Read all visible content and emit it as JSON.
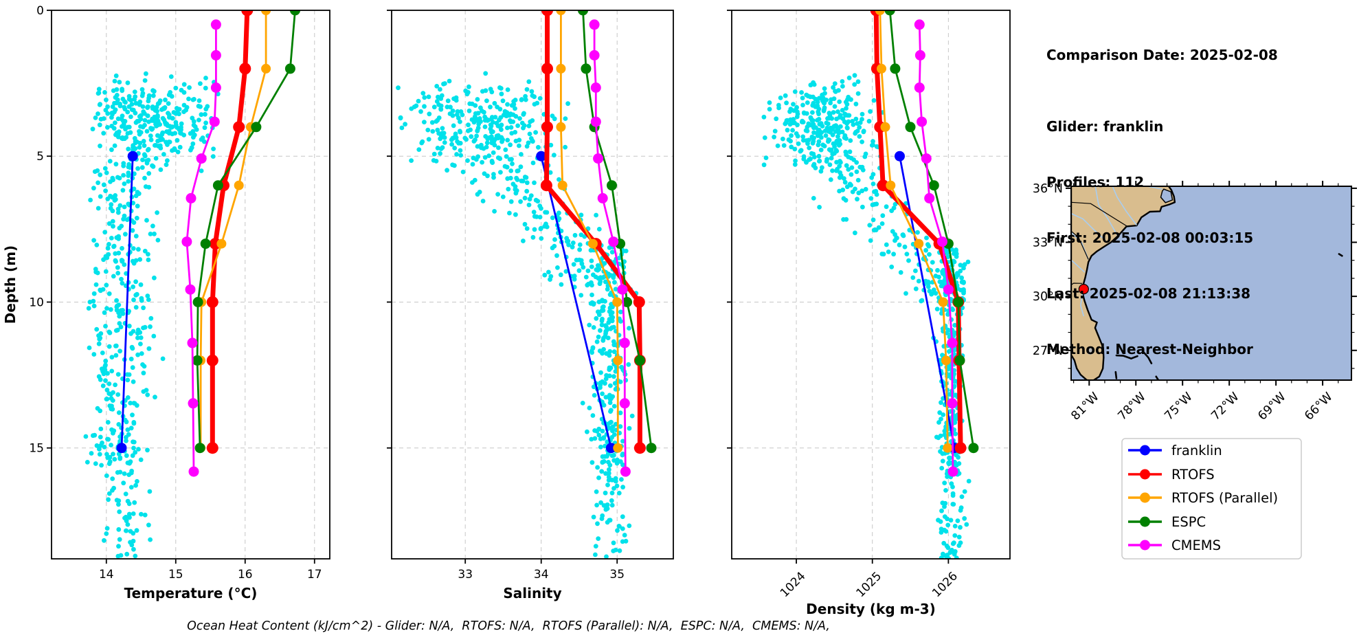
{
  "info_panel": {
    "comparison_date": "Comparison Date: 2025-02-08",
    "glider": "Glider: franklin",
    "profiles": "Profiles: 112",
    "first": "First: 2025-02-08 00:03:15",
    "last": "Last: 2025-02-08 21:13:38",
    "method": "Method: Nearest-Neighbor"
  },
  "footer": "Ocean Heat Content (kJ/cm^2) - Glider: N/A,  RTOFS: N/A,  RTOFS (Parallel): N/A,  ESPC: N/A,  CMEMS: N/A,",
  "legend": {
    "entries": [
      {
        "label": "franklin",
        "color": "#0000ff"
      },
      {
        "label": "RTOFS",
        "color": "#ff0000"
      },
      {
        "label": "RTOFS (Parallel)",
        "color": "#ffa500"
      },
      {
        "label": "ESPC",
        "color": "#008000"
      },
      {
        "label": "CMEMS",
        "color": "#ff00ff"
      }
    ]
  },
  "chart_data": {
    "type": "scatter+line-profiles",
    "ylabel": "Depth (m)",
    "ylim": [
      0,
      18.8
    ],
    "yticks": [
      0,
      5,
      10,
      15
    ],
    "grid": true,
    "panels": [
      {
        "key": "temperature",
        "xlabel": "Temperature (°C)",
        "xlim": [
          13.21,
          17.22
        ],
        "xticks": [
          14,
          15,
          16,
          17
        ],
        "tick_rotation": 0
      },
      {
        "key": "salinity",
        "xlabel": "Salinity",
        "xlim": [
          32.03,
          35.74
        ],
        "xticks": [
          33,
          34,
          35
        ],
        "tick_rotation": 0
      },
      {
        "key": "density",
        "xlabel": "Density (kg m-3)",
        "xlim": [
          1023.15,
          1026.81
        ],
        "xticks": [
          1024,
          1025,
          1026
        ],
        "tick_rotation": 45
      }
    ],
    "series": [
      {
        "name": "franklin",
        "color": "#0000ff",
        "linewidth": 2.8,
        "markersize": 7.5,
        "depths": [
          5,
          15
        ],
        "temperature": [
          14.38,
          14.22
        ],
        "salinity": [
          34.0,
          34.92
        ],
        "density": [
          1025.36,
          1026.08
        ]
      },
      {
        "name": "RTOFS",
        "color": "#ff0000",
        "linewidth": 7,
        "markersize": 8.5,
        "depths": [
          0,
          2,
          4,
          6,
          8,
          10,
          12,
          15
        ],
        "temperature": [
          16.03,
          16.0,
          15.91,
          15.69,
          15.57,
          15.53,
          15.53,
          15.53
        ],
        "salinity": [
          34.08,
          34.08,
          34.08,
          34.07,
          34.72,
          35.29,
          35.3,
          35.3
        ],
        "density": [
          1025.05,
          1025.06,
          1025.1,
          1025.14,
          1025.88,
          1026.13,
          1026.14,
          1026.16
        ]
      },
      {
        "name": "RTOFS (Parallel)",
        "color": "#ffa500",
        "linewidth": 2.8,
        "markersize": 7,
        "depths": [
          0,
          2,
          4,
          6,
          8,
          10,
          12,
          15
        ],
        "temperature": [
          16.3,
          16.3,
          16.08,
          15.91,
          15.66,
          15.37,
          15.36,
          15.36
        ],
        "salinity": [
          34.26,
          34.26,
          34.26,
          34.28,
          34.68,
          35.0,
          35.01,
          35.01
        ],
        "density": [
          1025.1,
          1025.12,
          1025.17,
          1025.24,
          1025.61,
          1025.93,
          1025.97,
          1025.99
        ]
      },
      {
        "name": "ESPC",
        "color": "#008000",
        "linewidth": 2.8,
        "markersize": 7.5,
        "depths": [
          0,
          2,
          4,
          6,
          8,
          10,
          12,
          15
        ],
        "temperature": [
          16.72,
          16.65,
          16.16,
          15.61,
          15.43,
          15.32,
          15.31,
          15.35
        ],
        "salinity": [
          34.55,
          34.59,
          34.7,
          34.93,
          35.04,
          35.13,
          35.3,
          35.45
        ],
        "density": [
          1025.23,
          1025.3,
          1025.5,
          1025.81,
          1026.0,
          1026.13,
          1026.15,
          1026.33
        ]
      },
      {
        "name": "CMEMS",
        "color": "#ff00ff",
        "linewidth": 2.8,
        "markersize": 7.5,
        "depths": [
          0.49,
          1.54,
          2.65,
          3.82,
          5.08,
          6.44,
          7.93,
          9.57,
          11.4,
          13.47,
          15.81
        ],
        "temperature": [
          15.58,
          15.58,
          15.58,
          15.56,
          15.37,
          15.22,
          15.16,
          15.21,
          15.24,
          15.25,
          15.26
        ],
        "salinity": [
          34.7,
          34.7,
          34.72,
          34.72,
          34.75,
          34.81,
          34.95,
          35.07,
          35.1,
          35.1,
          35.11
        ],
        "density": [
          1025.62,
          1025.63,
          1025.62,
          1025.65,
          1025.71,
          1025.75,
          1025.92,
          1026.0,
          1026.05,
          1026.05,
          1026.06
        ]
      }
    ],
    "glider_scatter": {
      "label": "glider raw observations",
      "color": "#00e1ea",
      "marker_radius": 3.4,
      "seed": 42,
      "clusters": {
        "temperature": [
          {
            "n": 300,
            "depth": {
              "dist": "gauss",
              "mean": 3.9,
              "sd": 0.8,
              "min": 2.15,
              "max": 5.6
            },
            "x": {
              "dist": "gauss",
              "mean": 14.6,
              "sd": 0.42,
              "min": 13.72,
              "max": 15.62
            }
          },
          {
            "n": 330,
            "depth": {
              "dist": "uniform",
              "min": 5.3,
              "max": 15.6
            },
            "x": {
              "dist": "gauss",
              "mean": 14.18,
              "sd": 0.23,
              "min": 13.7,
              "max": 14.82
            }
          },
          {
            "n": 55,
            "depth": {
              "dist": "uniform",
              "min": 15.6,
              "max": 18.75
            },
            "x": {
              "dist": "gauss",
              "mean": 14.25,
              "sd": 0.18,
              "min": 13.9,
              "max": 14.68
            }
          },
          {
            "n": 12,
            "depth": {
              "dist": "uniform",
              "min": 2.3,
              "max": 5.0
            },
            "x": {
              "dist": "uniform",
              "min": 15.05,
              "max": 15.6
            }
          }
        ],
        "salinity": [
          {
            "n": 280,
            "depth": {
              "dist": "gauss",
              "mean": 3.9,
              "sd": 0.8,
              "min": 2.15,
              "max": 5.6
            },
            "x": {
              "dist": "gauss",
              "mean": 33.15,
              "sd": 0.5,
              "min": 32.1,
              "max": 34.5
            }
          },
          {
            "n": 170,
            "depth": {
              "dist": "uniform",
              "min": 5.0,
              "max": 10.0
            },
            "x": {
              "dist": "trend",
              "base": 33.35,
              "ref": 5,
              "slope": 0.33,
              "noise": 0.3,
              "min": 32.5,
              "max": 35.25
            }
          },
          {
            "n": 260,
            "depth": {
              "dist": "uniform",
              "min": 8.0,
              "max": 15.6
            },
            "x": {
              "dist": "gauss",
              "mean": 34.88,
              "sd": 0.13,
              "min": 34.4,
              "max": 35.2
            }
          },
          {
            "n": 55,
            "depth": {
              "dist": "uniform",
              "min": 15.6,
              "max": 18.8
            },
            "x": {
              "dist": "gauss",
              "mean": 34.93,
              "sd": 0.1,
              "min": 34.6,
              "max": 35.18
            }
          }
        ],
        "density": [
          {
            "n": 280,
            "depth": {
              "dist": "gauss",
              "mean": 3.9,
              "sd": 0.8,
              "min": 2.15,
              "max": 5.6
            },
            "x": {
              "dist": "gauss",
              "mean": 1024.35,
              "sd": 0.33,
              "min": 1023.55,
              "max": 1025.2
            }
          },
          {
            "n": 160,
            "depth": {
              "dist": "uniform",
              "min": 5.0,
              "max": 10.0
            },
            "x": {
              "dist": "trend",
              "base": 1024.5,
              "ref": 5,
              "slope": 0.3,
              "noise": 0.27,
              "min": 1023.8,
              "max": 1026.2
            }
          },
          {
            "n": 280,
            "depth": {
              "dist": "uniform",
              "min": 8.0,
              "max": 16.0
            },
            "x": {
              "dist": "gauss",
              "mean": 1026.03,
              "sd": 0.08,
              "min": 1025.72,
              "max": 1026.3
            }
          },
          {
            "n": 55,
            "depth": {
              "dist": "uniform",
              "min": 16.0,
              "max": 18.8
            },
            "x": {
              "dist": "gauss",
              "mean": 1026.05,
              "sd": 0.08,
              "min": 1025.85,
              "max": 1026.3
            }
          }
        ]
      }
    }
  },
  "map": {
    "extent_lon": [
      -82.16,
      -64.15
    ],
    "extent_lat": [
      25.35,
      36.11
    ],
    "lon_tick_values": [
      -81,
      -78,
      -75,
      -72,
      -69,
      -66
    ],
    "lon_tick_labels": [
      "81°W",
      "78°W",
      "75°W",
      "72°W",
      "69°W",
      "66°W"
    ],
    "lat_tick_values": [
      36,
      33,
      30,
      27
    ],
    "lat_tick_labels": [
      "36°N",
      "33°N",
      "30°N",
      "27°N"
    ],
    "marker": {
      "lon": -81.35,
      "lat": 30.4,
      "color": "#ff0000"
    },
    "land_color": "#d9bd8e",
    "ocean_color": "#a3b8dc",
    "river_color": "#a9cdf0",
    "lake_color": "#b8b8b8",
    "coast_color": "#000000"
  }
}
